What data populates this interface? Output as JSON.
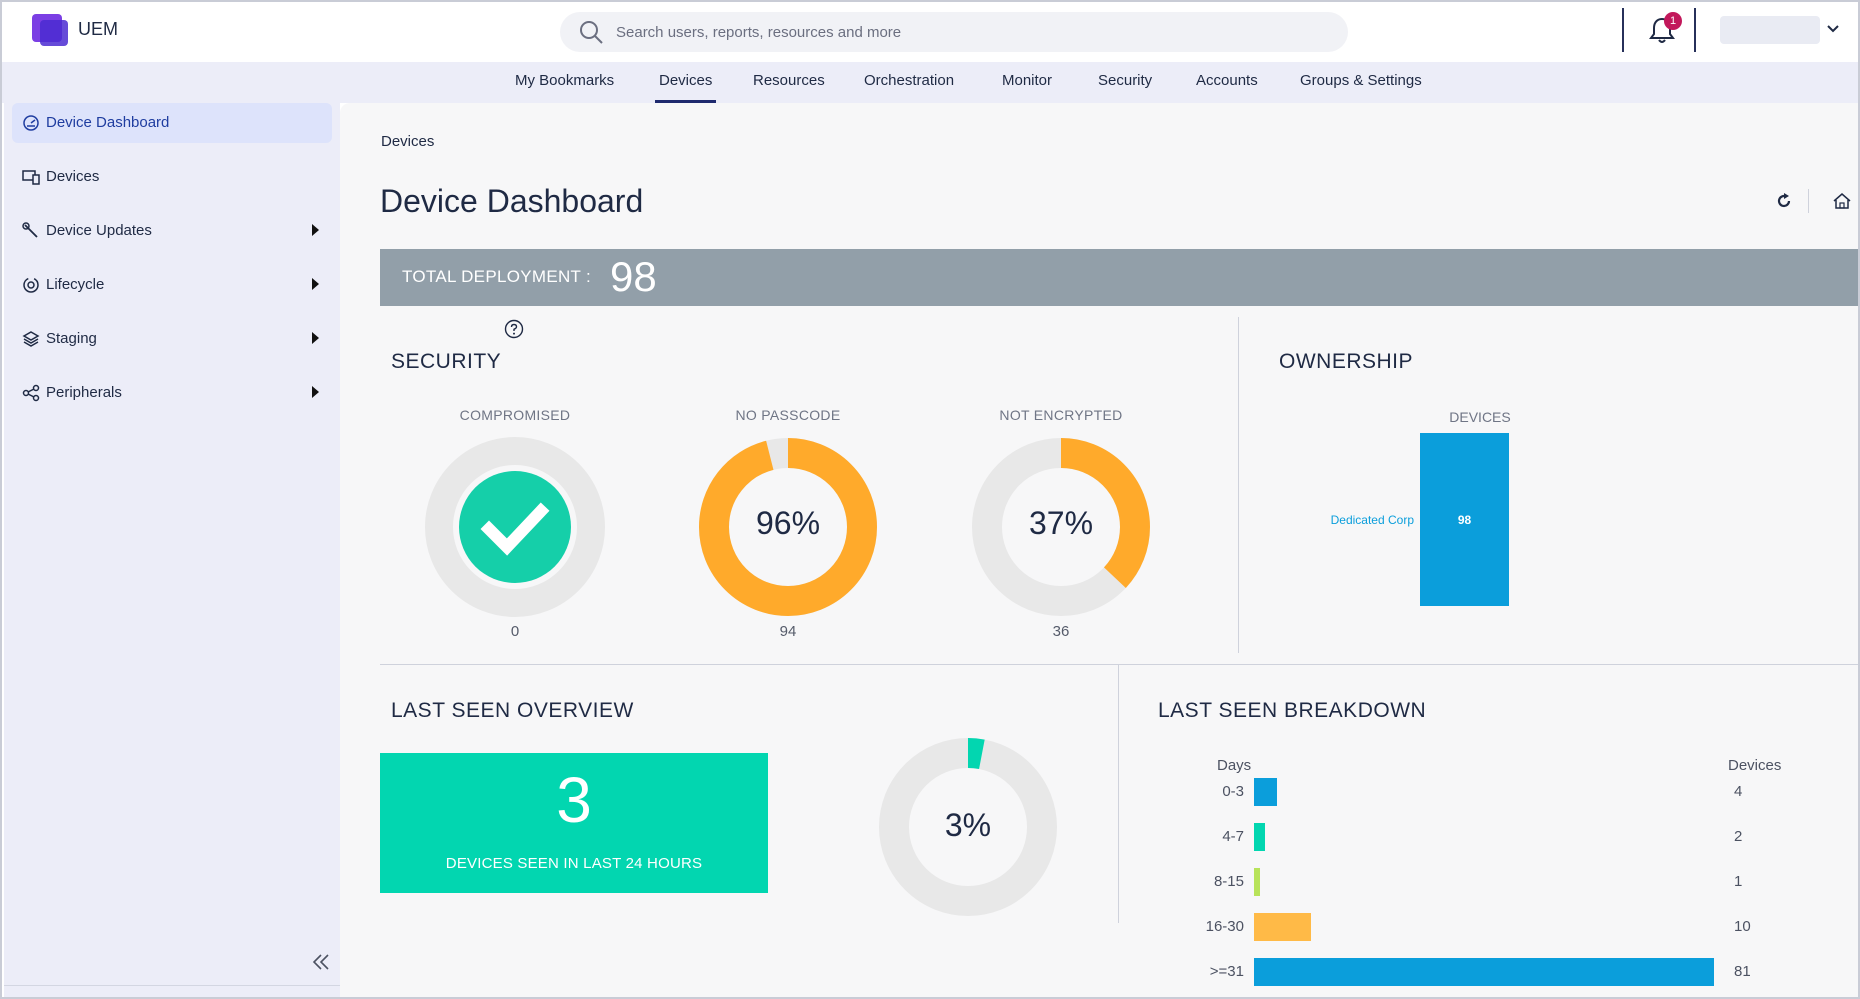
{
  "app": {
    "name": "UEM"
  },
  "search": {
    "placeholder": "Search users, reports, resources and more"
  },
  "notifications": {
    "count": "1"
  },
  "nav": {
    "items": [
      "My Bookmarks",
      "Devices",
      "Resources",
      "Orchestration",
      "Monitor",
      "Security",
      "Accounts",
      "Groups & Settings"
    ],
    "active": "Devices"
  },
  "sidebar": {
    "items": [
      {
        "label": "Device Dashboard",
        "icon": "dashboard-icon",
        "active": true,
        "expandable": false
      },
      {
        "label": "Devices",
        "icon": "devices-icon",
        "active": false,
        "expandable": false
      },
      {
        "label": "Device Updates",
        "icon": "wrench-icon",
        "active": false,
        "expandable": true
      },
      {
        "label": "Lifecycle",
        "icon": "lifecycle-icon",
        "active": false,
        "expandable": true
      },
      {
        "label": "Staging",
        "icon": "layers-icon",
        "active": false,
        "expandable": true
      },
      {
        "label": "Peripherals",
        "icon": "peripherals-icon",
        "active": false,
        "expandable": true
      }
    ]
  },
  "page": {
    "breadcrumb": "Devices",
    "title": "Device Dashboard"
  },
  "deployment": {
    "label": "TOTAL DEPLOYMENT :",
    "value": "98"
  },
  "security": {
    "title": "SECURITY",
    "items": [
      {
        "label": "COMPROMISED",
        "count": "0",
        "percent": 0,
        "display": "check"
      },
      {
        "label": "NO PASSCODE",
        "count": "94",
        "percent": 96,
        "display": "96%"
      },
      {
        "label": "NOT ENCRYPTED",
        "count": "36",
        "percent": 37,
        "display": "37%"
      }
    ]
  },
  "ownership": {
    "title": "OWNERSHIP",
    "chart_data": {
      "type": "bar",
      "ylabel": "DEVICES",
      "categories": [
        "Dedicated Corp"
      ],
      "values": [
        98
      ]
    }
  },
  "last_seen": {
    "title": "LAST SEEN OVERVIEW",
    "value": "3",
    "caption": "DEVICES SEEN IN LAST 24 HOURS",
    "percent": 3,
    "percent_label": "3%"
  },
  "breakdown": {
    "title": "LAST SEEN BREAKDOWN",
    "chart_data": {
      "type": "bar",
      "xlabel": "Days",
      "ylabel": "Devices",
      "categories": [
        "0-3",
        "4-7",
        "8-15",
        "16-30",
        ">=31"
      ],
      "values": [
        4,
        2,
        1,
        10,
        81
      ],
      "colors": [
        "#0b9edb",
        "#02d6b0",
        "#b8e35a",
        "#ffba47",
        "#0b9edb"
      ]
    }
  },
  "colors": {
    "accent": "#1f2a6e",
    "teal": "#02d6b0",
    "orange": "#ffaa2b",
    "ring_bg": "#e8e8e8",
    "bar_blue": "#0b9edb"
  }
}
